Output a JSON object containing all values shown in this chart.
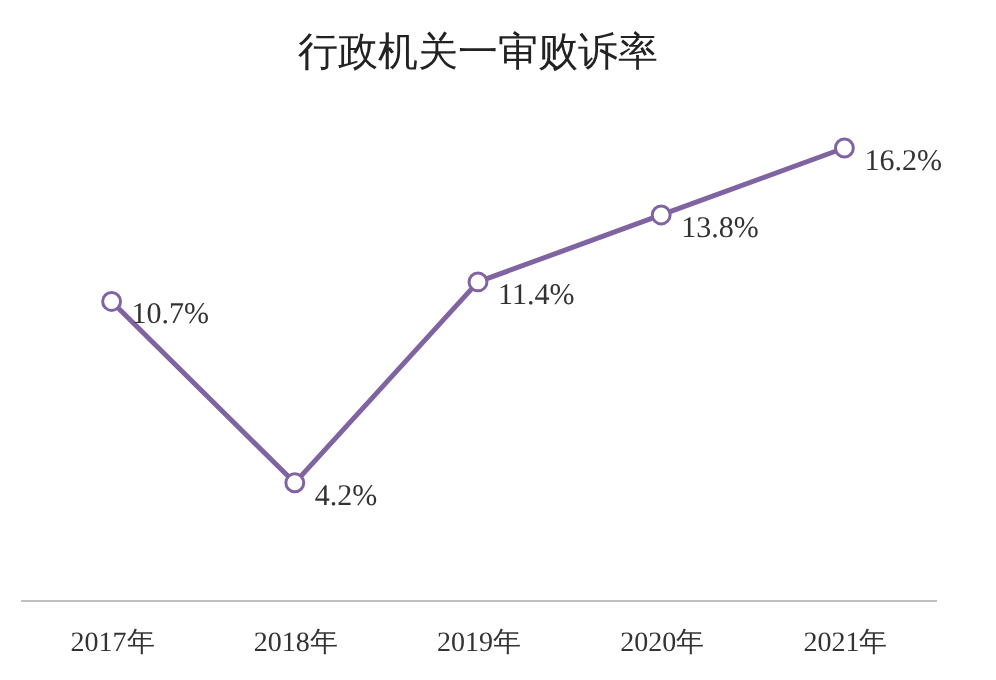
{
  "chart_data": {
    "type": "line",
    "title": "行政机关一审败诉率",
    "categories": [
      "2017年",
      "2018年",
      "2019年",
      "2020年",
      "2021年"
    ],
    "series": [
      {
        "color": "#8064a2",
        "values": [
          10.7,
          4.2,
          11.4,
          13.8,
          16.2
        ],
        "value_labels": [
          "10.7%",
          "4.2%",
          "11.4%",
          "13.8%",
          "16.2%"
        ]
      }
    ],
    "marker": "circle",
    "line_style": "solid",
    "grid": false,
    "legend": false,
    "tick_labels": "x"
  }
}
